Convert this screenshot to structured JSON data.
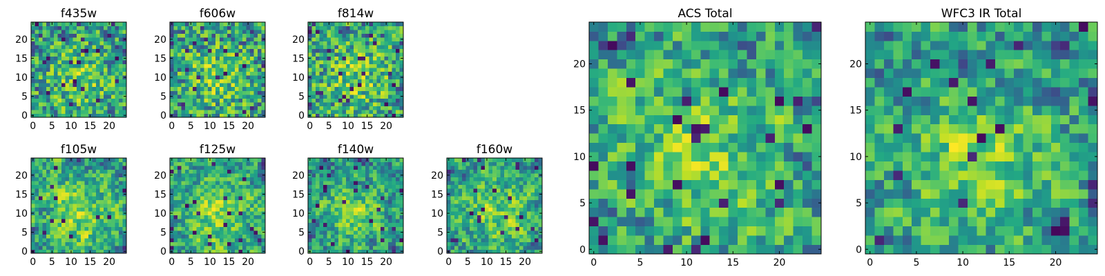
{
  "chart_data": [
    {
      "type": "heatmap",
      "title": "f435w",
      "xticks": [
        "0",
        "5",
        "10",
        "15",
        "20"
      ],
      "yticks": [
        "0",
        "5",
        "10",
        "15",
        "20"
      ],
      "xlim": [
        -0.5,
        24.5
      ],
      "ylim": [
        -0.5,
        24.5
      ],
      "grid": false,
      "colormap": "viridis",
      "shape": [
        25,
        25
      ],
      "seed": 11
    },
    {
      "type": "heatmap",
      "title": "f606w",
      "xticks": [
        "0",
        "5",
        "10",
        "15",
        "20"
      ],
      "yticks": [
        "0",
        "5",
        "10",
        "15",
        "20"
      ],
      "xlim": [
        -0.5,
        24.5
      ],
      "ylim": [
        -0.5,
        24.5
      ],
      "grid": false,
      "colormap": "viridis",
      "shape": [
        25,
        25
      ],
      "seed": 23
    },
    {
      "type": "heatmap",
      "title": "f814w",
      "xticks": [
        "0",
        "5",
        "10",
        "15",
        "20"
      ],
      "yticks": [
        "0",
        "5",
        "10",
        "15",
        "20"
      ],
      "xlim": [
        -0.5,
        24.5
      ],
      "ylim": [
        -0.5,
        24.5
      ],
      "grid": false,
      "colormap": "viridis",
      "shape": [
        25,
        25
      ],
      "seed": 37
    },
    {
      "type": "heatmap",
      "title": "f105w",
      "xticks": [
        "0",
        "5",
        "10",
        "15",
        "20"
      ],
      "yticks": [
        "0",
        "5",
        "10",
        "15",
        "20"
      ],
      "xlim": [
        -0.5,
        24.5
      ],
      "ylim": [
        -0.5,
        24.5
      ],
      "grid": false,
      "colormap": "viridis",
      "shape": [
        25,
        25
      ],
      "seed": 41
    },
    {
      "type": "heatmap",
      "title": "f125w",
      "xticks": [
        "0",
        "5",
        "10",
        "15",
        "20"
      ],
      "yticks": [
        "0",
        "5",
        "10",
        "15",
        "20"
      ],
      "xlim": [
        -0.5,
        24.5
      ],
      "ylim": [
        -0.5,
        24.5
      ],
      "grid": false,
      "colormap": "viridis",
      "shape": [
        25,
        25
      ],
      "seed": 53
    },
    {
      "type": "heatmap",
      "title": "f140w",
      "xticks": [
        "0",
        "5",
        "10",
        "15",
        "20"
      ],
      "yticks": [
        "0",
        "5",
        "10",
        "15",
        "20"
      ],
      "xlim": [
        -0.5,
        24.5
      ],
      "ylim": [
        -0.5,
        24.5
      ],
      "grid": false,
      "colormap": "viridis",
      "shape": [
        25,
        25
      ],
      "seed": 67
    },
    {
      "type": "heatmap",
      "title": "f160w",
      "xticks": [
        "0",
        "5",
        "10",
        "15",
        "20"
      ],
      "yticks": [
        "0",
        "5",
        "10",
        "15",
        "20"
      ],
      "xlim": [
        -0.5,
        24.5
      ],
      "ylim": [
        -0.5,
        24.5
      ],
      "grid": false,
      "colormap": "viridis",
      "shape": [
        25,
        25
      ],
      "seed": 79
    },
    {
      "type": "heatmap",
      "title": "ACS Total",
      "xticks": [
        "0",
        "5",
        "10",
        "15",
        "20"
      ],
      "yticks": [
        "0",
        "5",
        "10",
        "15",
        "20"
      ],
      "xlim": [
        -0.5,
        24.5
      ],
      "ylim": [
        -0.5,
        24.5
      ],
      "grid": false,
      "colormap": "viridis",
      "shape": [
        25,
        25
      ],
      "seed": 83
    },
    {
      "type": "heatmap",
      "title": "WFC3 IR Total",
      "xticks": [
        "0",
        "5",
        "10",
        "15",
        "20"
      ],
      "yticks": [
        "0",
        "5",
        "10",
        "15",
        "20"
      ],
      "xlim": [
        -0.5,
        24.5
      ],
      "ylim": [
        -0.5,
        24.5
      ],
      "grid": false,
      "colormap": "viridis",
      "shape": [
        25,
        25
      ],
      "seed": 97
    }
  ]
}
